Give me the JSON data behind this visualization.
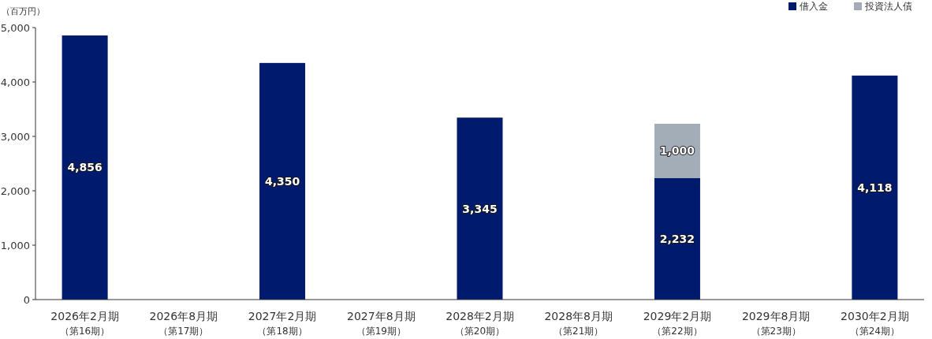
{
  "chart_data": {
    "type": "bar",
    "stacked": true,
    "ylabel": "（百万円）",
    "categories": [
      "2026年2月期（第16期）",
      "2026年8月期（第17期）",
      "2027年2月期（第18期）",
      "2027年8月期（第19期）",
      "2028年2月期（第20期）",
      "2028年8月期（第21期）",
      "2029年2月期（第22期）",
      "2029年8月期（第23期）",
      "2030年2月期（第24期）"
    ],
    "series": [
      {
        "name": "借入金",
        "color": "#001a6e",
        "values": [
          4856,
          null,
          4350,
          null,
          3345,
          null,
          2232,
          null,
          4118
        ],
        "value_labels": [
          "4,856",
          null,
          "4,350",
          null,
          "3,345",
          null,
          "2,232",
          null,
          "4,118"
        ]
      },
      {
        "name": "投資法人債",
        "color": "#a2adb8",
        "values": [
          null,
          null,
          null,
          null,
          null,
          null,
          1000,
          null,
          null
        ],
        "value_labels": [
          null,
          null,
          null,
          null,
          null,
          null,
          "1,000",
          null,
          null
        ]
      }
    ],
    "ylim": [
      0,
      5000
    ],
    "yticks": [
      {
        "value": 0,
        "label": "0"
      },
      {
        "value": 1000,
        "label": "1,000"
      },
      {
        "value": 2000,
        "label": "2,000"
      },
      {
        "value": 3000,
        "label": "3,000"
      },
      {
        "value": 4000,
        "label": "4,000"
      },
      {
        "value": 5000,
        "label": "5,000"
      }
    ],
    "grid": false,
    "legend": "top right"
  }
}
